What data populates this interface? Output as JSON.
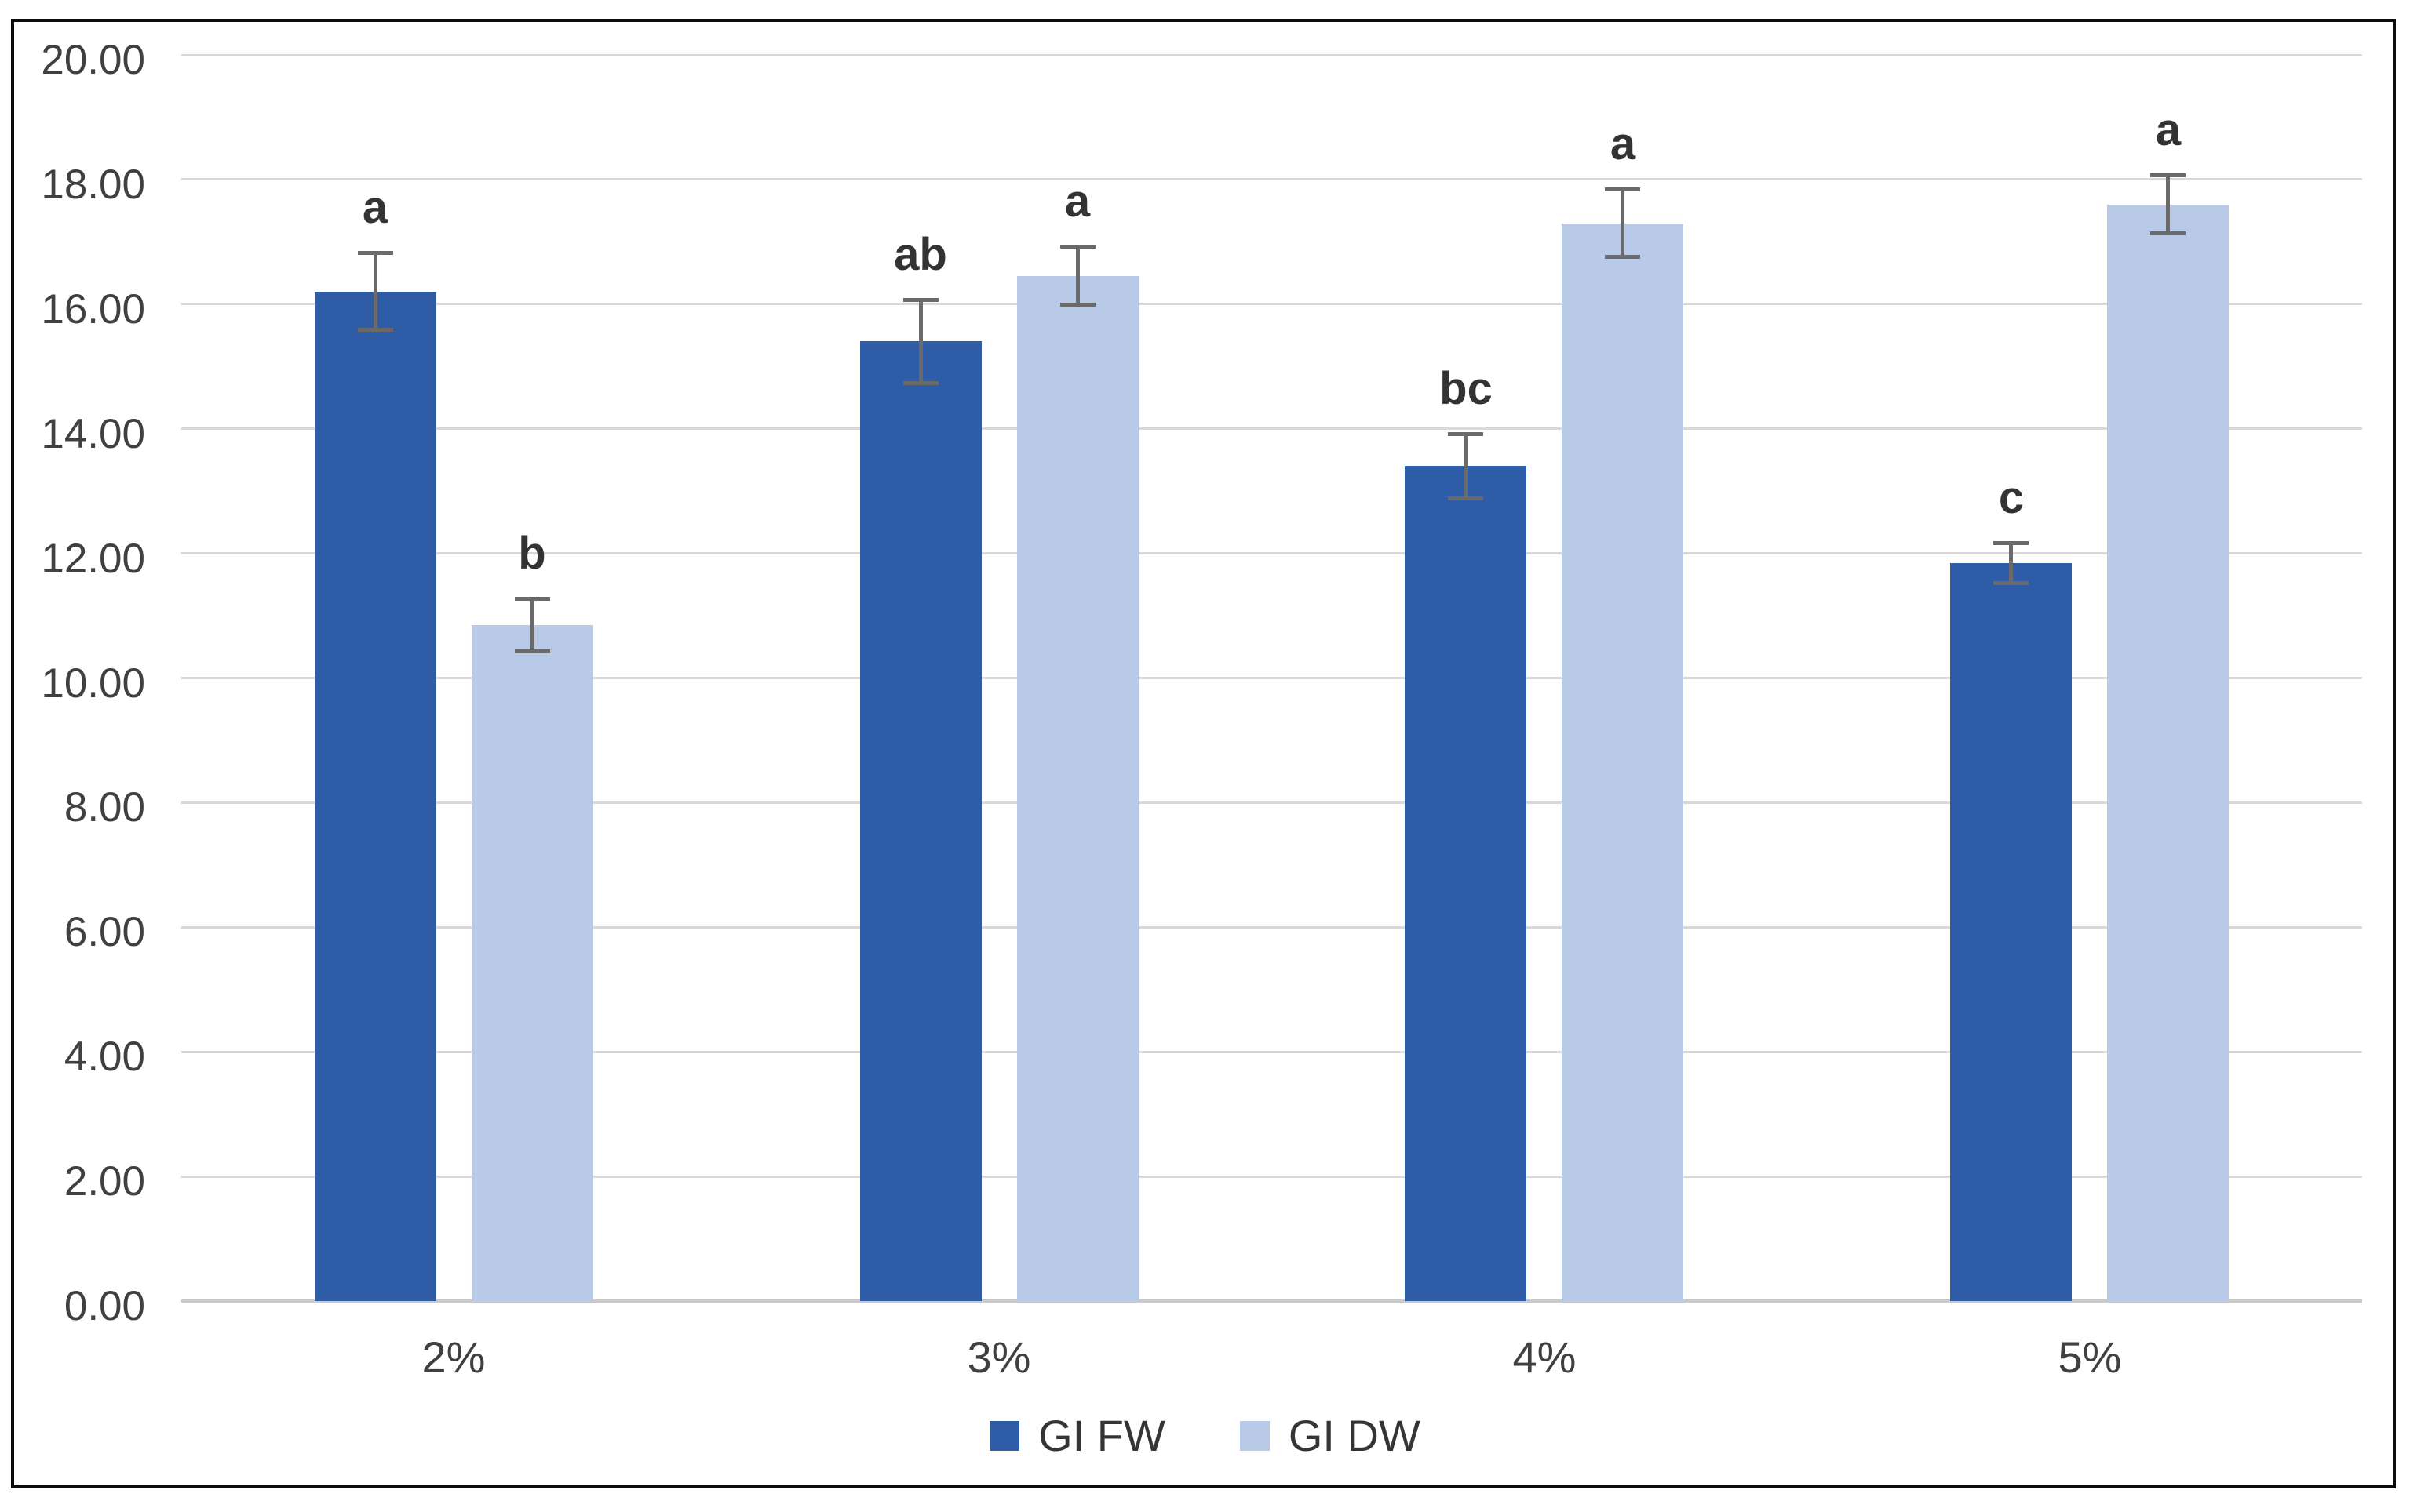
{
  "figure": {
    "background": "#ffffff",
    "border_color": "#0d0d0d"
  },
  "chart_data": {
    "type": "bar",
    "title": "",
    "xlabel": "",
    "ylabel": "",
    "categories": [
      "2%",
      "3%",
      "4%",
      "5%"
    ],
    "series": [
      {
        "name": "GI FW",
        "color": "#2E5CA6",
        "values": [
          16.2,
          15.4,
          13.4,
          11.85
        ],
        "errors": [
          0.65,
          0.7,
          0.55,
          0.35
        ],
        "letters": [
          "a",
          "ab",
          "bc",
          "c"
        ]
      },
      {
        "name": "GI DW",
        "color": "#B8CAE8",
        "values": [
          10.85,
          16.45,
          17.3,
          17.6
        ],
        "errors": [
          0.45,
          0.5,
          0.57,
          0.5
        ],
        "letters": [
          "b",
          "a",
          "a",
          "a"
        ]
      }
    ],
    "ylim": [
      0,
      20
    ],
    "ytick_step": 2,
    "ytick_labels": [
      "0.00",
      "2.00",
      "4.00",
      "6.00",
      "8.00",
      "10.00",
      "12.00",
      "14.00",
      "16.00",
      "18.00",
      "20.00"
    ],
    "grid": true,
    "error_bars": true,
    "annotation_type": "significance-letters",
    "legend_position": "bottom",
    "colors": {
      "gridline": "#D9D9D9",
      "axis_line": "#C9C9C9",
      "error_bar": "#6A6A6A",
      "tick_text": "#404040",
      "letter_text": "#333333"
    }
  },
  "legend": {
    "position": "bottom",
    "labels": [
      "GI FW",
      "GI DW"
    ]
  }
}
